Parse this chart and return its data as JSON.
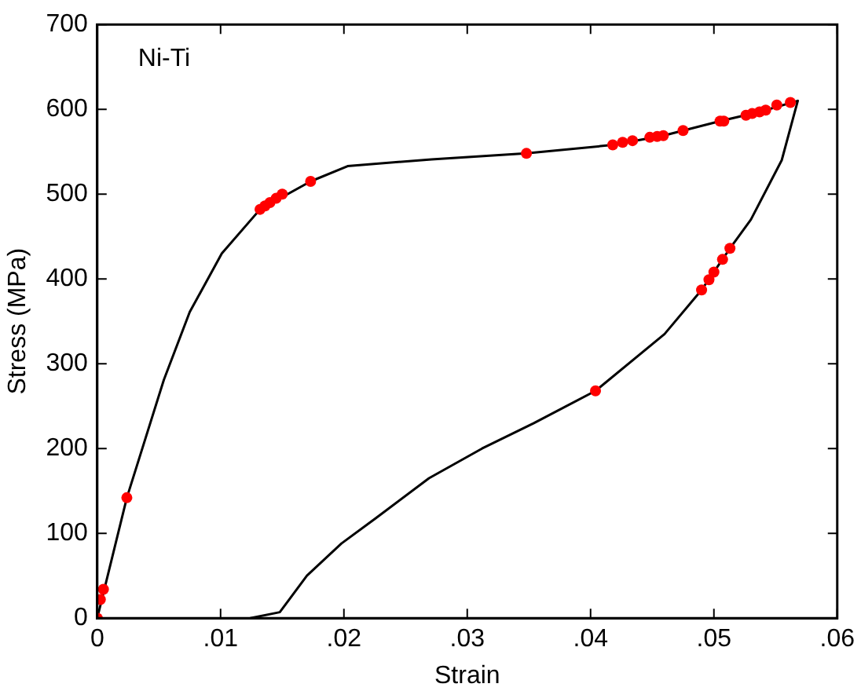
{
  "chart_data": {
    "type": "scatter",
    "xlabel": "Strain",
    "ylabel": "Stress (MPa)",
    "annotations": [
      "Ni-Ti"
    ],
    "xlim": [
      0,
      0.06
    ],
    "ylim": [
      0,
      700
    ],
    "xticks": [
      {
        "value": 0,
        "label": "0"
      },
      {
        "value": 0.01,
        "label": ".01"
      },
      {
        "value": 0.02,
        "label": ".02"
      },
      {
        "value": 0.03,
        "label": ".03"
      },
      {
        "value": 0.04,
        "label": ".04"
      },
      {
        "value": 0.05,
        "label": ".05"
      },
      {
        "value": 0.06,
        "label": ".06"
      }
    ],
    "yticks": [
      0,
      100,
      200,
      300,
      400,
      500,
      600,
      700
    ],
    "grid": false,
    "legend": false,
    "series": [
      {
        "type": "line",
        "color": "#000000",
        "marker": "none",
        "line_style": "solid",
        "x": [
          0,
          0.0024,
          0.0054,
          0.0075,
          0.0101,
          0.0132,
          0.0173,
          0.0203,
          0.0271,
          0.0348,
          0.0418,
          0.0459,
          0.0505,
          0.0537,
          0.0568,
          0.0555,
          0.053,
          0.0513,
          0.049,
          0.046,
          0.0404,
          0.0354,
          0.0312,
          0.0269,
          0.0226,
          0.0198,
          0.017,
          0.0148,
          0.0124
        ],
        "values": [
          0,
          142,
          281,
          361,
          430,
          482,
          515,
          533,
          541,
          548,
          558,
          569,
          586,
          597,
          610,
          540,
          470,
          436,
          387,
          335,
          268,
          230,
          200,
          165,
          118,
          88,
          50,
          7,
          0
        ]
      },
      {
        "color": "#ff0000",
        "marker": "circle",
        "x": [
          0,
          0.00025,
          0.0005,
          0.0024,
          0.0132,
          0.0136,
          0.014,
          0.0145,
          0.015,
          0.0173,
          0.0348,
          0.0418,
          0.0426,
          0.0434,
          0.0448,
          0.0454,
          0.0459,
          0.0475,
          0.0505,
          0.0508,
          0.0526,
          0.0531,
          0.0537,
          0.0542,
          0.0551,
          0.0562,
          0.0513,
          0.0507,
          0.05,
          0.0496,
          0.049,
          0.0404
        ],
        "values": [
          0,
          22,
          34,
          142,
          482,
          486,
          490,
          495,
          500,
          515,
          548,
          558,
          561,
          563,
          567,
          568,
          569,
          575,
          586,
          586,
          593,
          595,
          597,
          599,
          605,
          608,
          436,
          423,
          408,
          399,
          387,
          268
        ]
      }
    ]
  }
}
